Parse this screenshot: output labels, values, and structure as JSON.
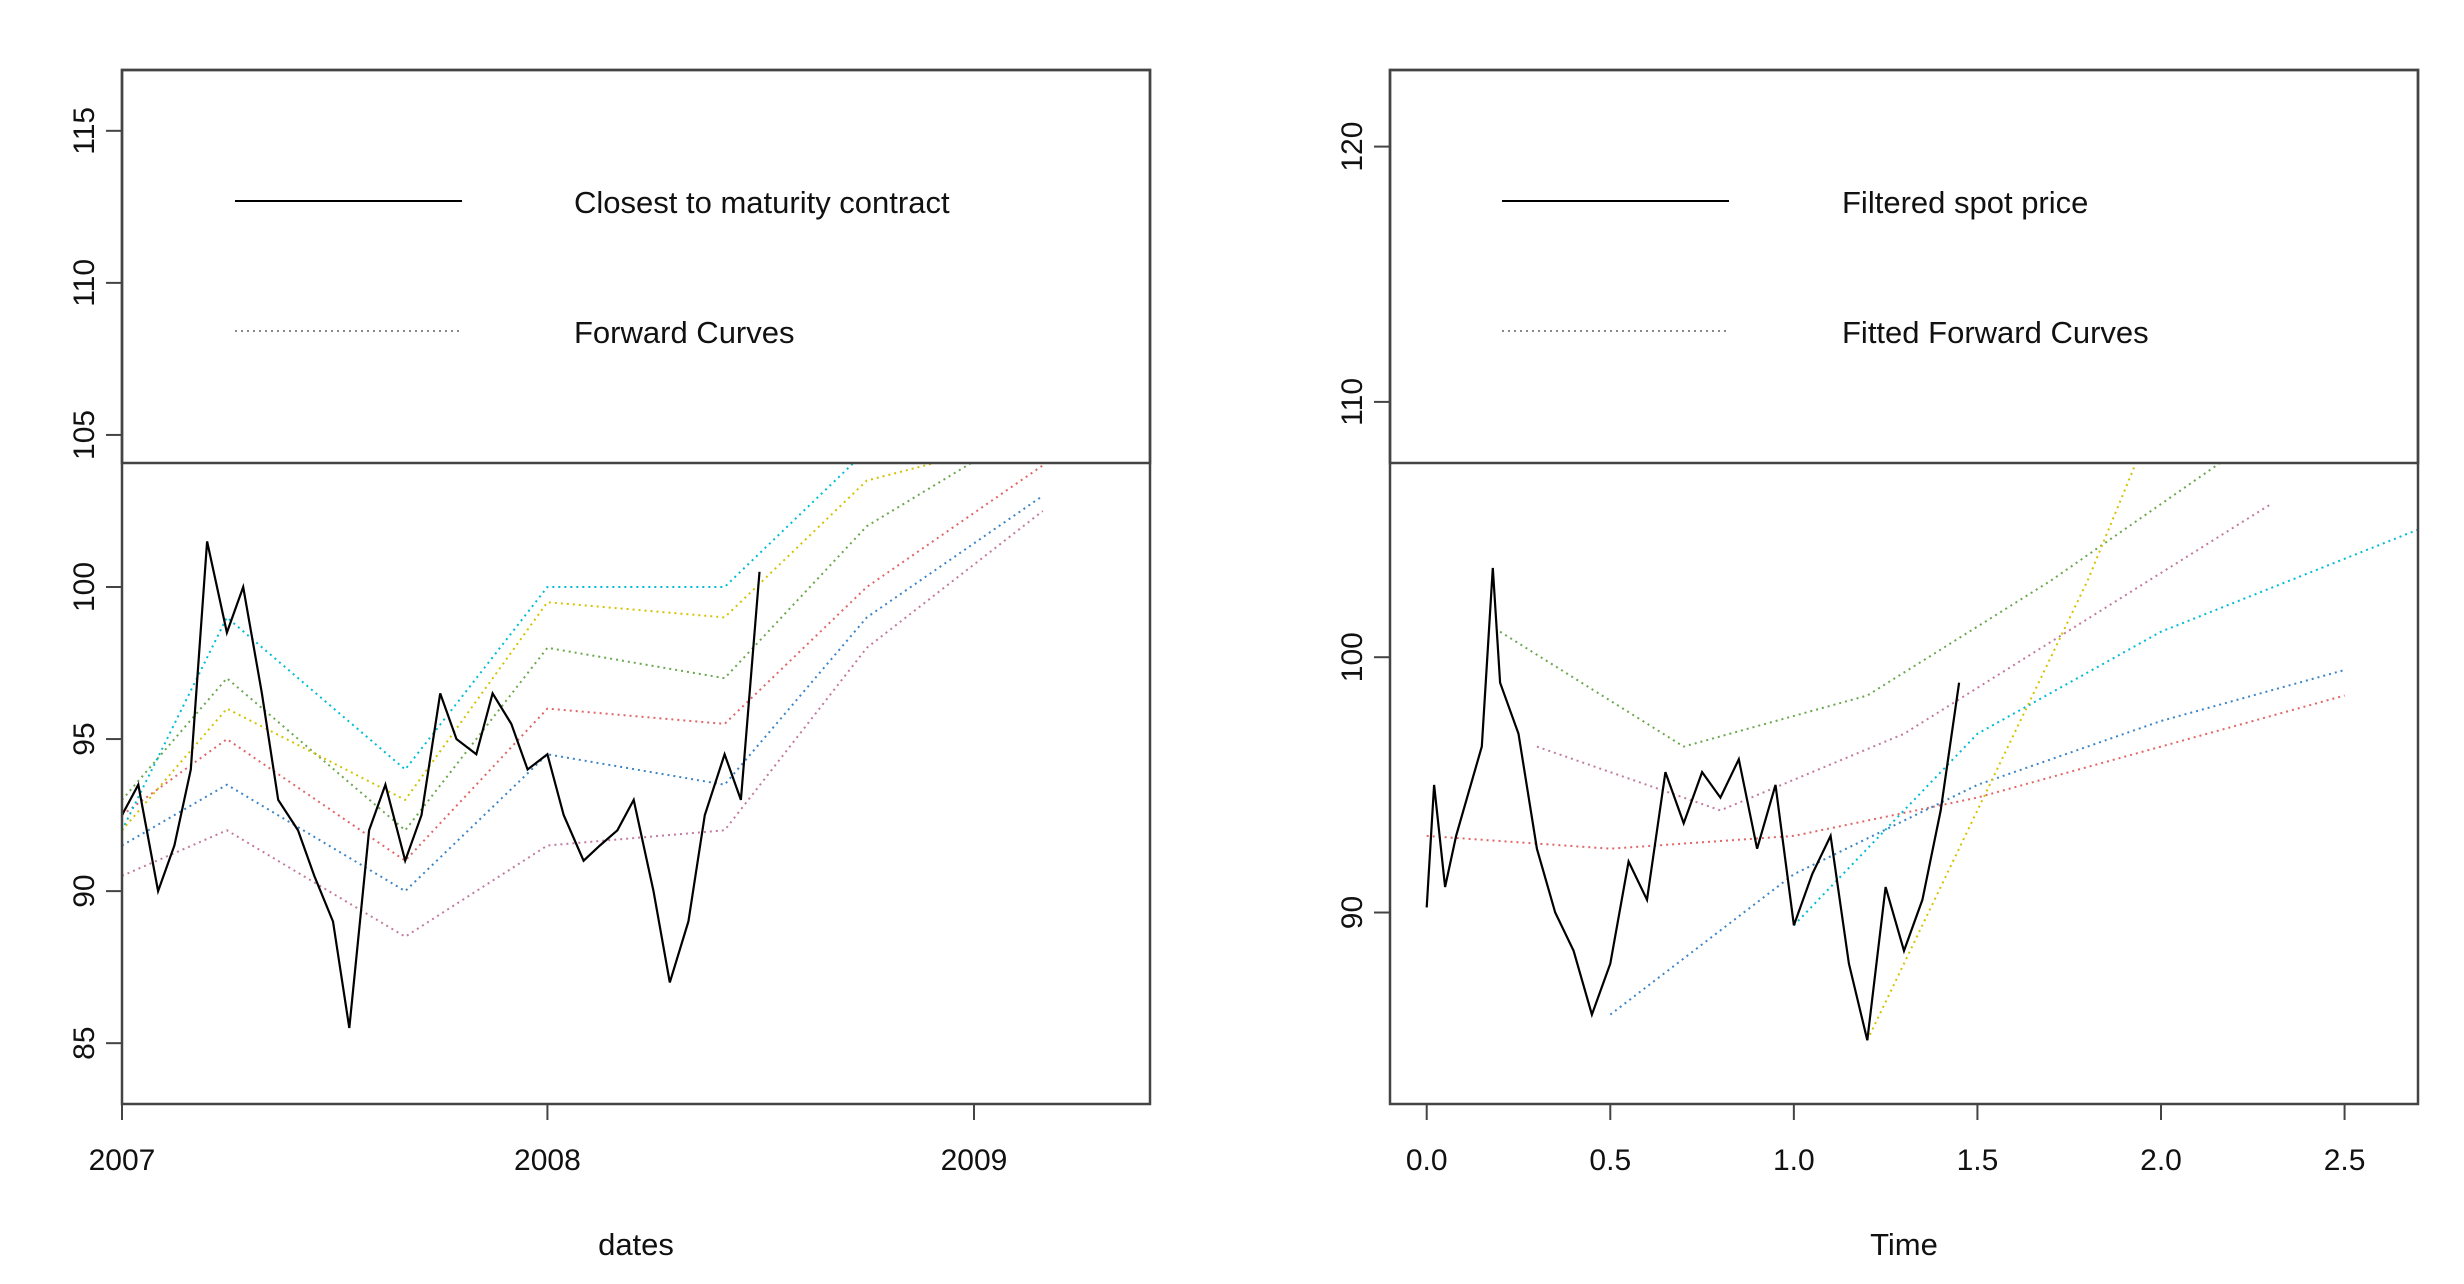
{
  "chart_data": [
    {
      "type": "line",
      "xlabel": "dates",
      "ylabel": "",
      "x_range": [
        "2007-01-01",
        "2009-06-01"
      ],
      "ylim": [
        83,
        117
      ],
      "x_ticks": [
        "2007",
        "2008",
        "2009"
      ],
      "y_ticks": [
        85,
        90,
        95,
        100,
        105,
        110,
        115
      ],
      "legend": {
        "placement": "top",
        "entries": [
          {
            "label": "Closest to maturity contract",
            "style": "solid"
          },
          {
            "label": "Forward Curves",
            "style": "dotted"
          }
        ]
      },
      "series": [
        {
          "name": "Closest to maturity contract",
          "style": "solid",
          "color": "#000000",
          "x": [
            "2007-01-01",
            "2007-01-15",
            "2007-02-01",
            "2007-02-15",
            "2007-03-01",
            "2007-03-15",
            "2007-04-01",
            "2007-04-15",
            "2007-05-01",
            "2007-05-15",
            "2007-06-01",
            "2007-06-15",
            "2007-07-01",
            "2007-07-15",
            "2007-08-01",
            "2007-08-15",
            "2007-09-01",
            "2007-09-15",
            "2007-10-01",
            "2007-10-15",
            "2007-11-01",
            "2007-11-15",
            "2007-12-01",
            "2007-12-15",
            "2008-01-01",
            "2008-01-15",
            "2008-02-01",
            "2008-02-15",
            "2008-03-01",
            "2008-03-15",
            "2008-04-01",
            "2008-04-15",
            "2008-05-01",
            "2008-05-15",
            "2008-06-01",
            "2008-06-15",
            "2008-07-01"
          ],
          "values": [
            92.5,
            93.5,
            90.0,
            91.5,
            94.0,
            101.5,
            98.5,
            100.0,
            96.5,
            93.0,
            92.0,
            90.5,
            89.0,
            85.5,
            92.0,
            93.5,
            91.0,
            92.5,
            96.5,
            95.0,
            94.5,
            96.5,
            95.5,
            94.0,
            94.5,
            92.5,
            91.0,
            91.5,
            92.0,
            93.0,
            90.0,
            87.0,
            89.0,
            92.5,
            94.5,
            93.0,
            100.5
          ]
        },
        {
          "name": "",
          "style": "dotted",
          "color": "#e06666",
          "x": [
            "2007-01-01",
            "2007-04-01",
            "2007-09-01",
            "2008-01-01",
            "2008-06-01",
            "2008-10-01",
            "2009-03-01"
          ],
          "values": [
            92.5,
            95.0,
            91.0,
            96.0,
            95.5,
            100.0,
            104.0
          ]
        },
        {
          "name": "",
          "style": "dotted",
          "color": "#6aa84f",
          "x": [
            "2007-01-01",
            "2007-04-01",
            "2007-09-01",
            "2008-01-01",
            "2008-06-01",
            "2008-10-01",
            "2009-03-01"
          ],
          "values": [
            93.0,
            97.0,
            92.0,
            98.0,
            97.0,
            102.0,
            105.5
          ]
        },
        {
          "name": "",
          "style": "dotted",
          "color": "#3d85c6",
          "x": [
            "2007-01-01",
            "2007-04-01",
            "2007-09-01",
            "2008-01-01",
            "2008-06-01",
            "2008-10-01",
            "2009-03-01"
          ],
          "values": [
            91.5,
            93.5,
            90.0,
            94.5,
            93.5,
            99.0,
            103.0
          ]
        },
        {
          "name": "",
          "style": "dotted",
          "color": "#00bcd4",
          "x": [
            "2007-01-01",
            "2007-04-01",
            "2007-09-01",
            "2008-01-01",
            "2008-06-01",
            "2008-10-01",
            "2009-03-01"
          ],
          "values": [
            92.0,
            99.0,
            94.0,
            100.0,
            100.0,
            104.5,
            106.0
          ]
        },
        {
          "name": "",
          "style": "dotted",
          "color": "#c27ba0",
          "x": [
            "2007-01-01",
            "2007-04-01",
            "2007-09-01",
            "2008-01-01",
            "2008-06-01",
            "2008-10-01",
            "2009-03-01"
          ],
          "values": [
            90.5,
            92.0,
            88.5,
            91.5,
            92.0,
            98.0,
            102.5
          ]
        },
        {
          "name": "",
          "style": "dotted",
          "color": "#d5c200",
          "x": [
            "2007-01-01",
            "2007-04-01",
            "2007-09-01",
            "2008-01-01",
            "2008-06-01",
            "2008-10-01",
            "2009-03-01"
          ],
          "values": [
            92.0,
            96.0,
            93.0,
            99.5,
            99.0,
            103.5,
            105.0
          ]
        }
      ]
    },
    {
      "type": "line",
      "xlabel": "Time",
      "ylabel": "",
      "xlim": [
        -0.1,
        2.7
      ],
      "ylim": [
        82.5,
        123
      ],
      "x_ticks": [
        "0.0",
        "0.5",
        "1.0",
        "1.5",
        "2.0",
        "2.5"
      ],
      "y_ticks": [
        90,
        100,
        110,
        120
      ],
      "legend": {
        "placement": "top",
        "entries": [
          {
            "label": "Filtered spot price",
            "style": "solid"
          },
          {
            "label": "Fitted Forward Curves",
            "style": "dotted"
          }
        ]
      },
      "series": [
        {
          "name": "Filtered spot price",
          "style": "solid",
          "color": "#000000",
          "x": [
            0.0,
            0.02,
            0.05,
            0.08,
            0.1,
            0.15,
            0.18,
            0.2,
            0.25,
            0.3,
            0.35,
            0.4,
            0.45,
            0.5,
            0.55,
            0.6,
            0.65,
            0.7,
            0.75,
            0.8,
            0.85,
            0.9,
            0.95,
            1.0,
            1.05,
            1.1,
            1.15,
            1.2,
            1.25,
            1.3,
            1.35,
            1.4,
            1.45
          ],
          "values": [
            90.2,
            95.0,
            91.0,
            93.0,
            94.0,
            96.5,
            103.5,
            99.0,
            97.0,
            92.5,
            90.0,
            88.5,
            86.0,
            88.0,
            92.0,
            90.5,
            95.5,
            93.5,
            95.5,
            94.5,
            96.0,
            92.5,
            95.0,
            89.5,
            91.5,
            93.0,
            88.0,
            85.0,
            91.0,
            88.5,
            90.5,
            94.0,
            99.0
          ]
        },
        {
          "name": "",
          "style": "dotted",
          "color": "#e06666",
          "x": [
            0.0,
            0.5,
            1.0,
            1.5,
            2.0,
            2.5
          ],
          "values": [
            93.0,
            92.5,
            93.0,
            94.5,
            96.5,
            98.5
          ]
        },
        {
          "name": "",
          "style": "dotted",
          "color": "#6aa84f",
          "x": [
            0.2,
            0.7,
            1.2,
            1.7,
            2.2,
            2.6
          ],
          "values": [
            101.0,
            96.5,
            98.5,
            103.0,
            108.0,
            112.0
          ]
        },
        {
          "name": "",
          "style": "dotted",
          "color": "#3d85c6",
          "x": [
            0.5,
            1.0,
            1.5,
            2.0,
            2.5
          ],
          "values": [
            86.0,
            91.5,
            95.0,
            97.5,
            99.5
          ]
        },
        {
          "name": "",
          "style": "dotted",
          "color": "#00bcd4",
          "x": [
            1.0,
            1.5,
            2.0,
            2.7
          ],
          "values": [
            89.5,
            97.0,
            101.0,
            105.0
          ]
        },
        {
          "name": "",
          "style": "dotted",
          "color": "#c27ba0",
          "x": [
            0.3,
            0.8,
            1.3,
            1.8,
            2.3
          ],
          "values": [
            96.5,
            94.0,
            97.0,
            101.5,
            106.0
          ]
        },
        {
          "name": "",
          "style": "dotted",
          "color": "#d5c200",
          "x": [
            1.2,
            1.5,
            1.8,
            2.0
          ],
          "values": [
            85.0,
            94.0,
            103.0,
            110.0
          ]
        }
      ]
    }
  ]
}
